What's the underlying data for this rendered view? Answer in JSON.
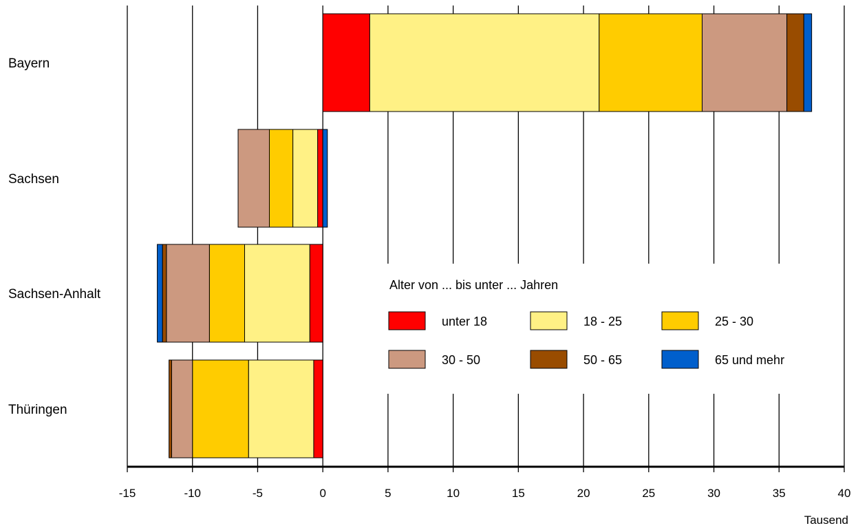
{
  "chart_data": {
    "type": "bar",
    "orientation": "horizontal",
    "stacked": true,
    "categories": [
      "Bayern",
      "Sachsen",
      "Sachsen-Anhalt",
      "Thüringen"
    ],
    "series": [
      {
        "name": "unter 18",
        "color": "#ff0000",
        "values": [
          3.6,
          -0.4,
          -1.0,
          -0.7
        ]
      },
      {
        "name": "18 - 25",
        "color": "#fff185",
        "values": [
          17.6,
          -1.9,
          -5.0,
          -5.0
        ]
      },
      {
        "name": "25 - 30",
        "color": "#ffcc00",
        "values": [
          7.9,
          -1.8,
          -2.7,
          -4.3
        ]
      },
      {
        "name": "30 - 50",
        "color": "#cc9980",
        "values": [
          6.5,
          -2.4,
          -3.3,
          -1.6
        ]
      },
      {
        "name": "50 - 65",
        "color": "#994c00",
        "values": [
          1.3,
          0,
          -0.3,
          -0.2
        ]
      },
      {
        "name": "65 und mehr",
        "color": "#005fcc",
        "values": [
          0.6,
          0.35,
          -0.4,
          0
        ]
      }
    ],
    "xlim": [
      -15,
      40
    ],
    "xticks": [
      "-15",
      "-10",
      "-5",
      "0",
      "5",
      "10",
      "15",
      "20",
      "25",
      "30",
      "35",
      "40"
    ],
    "xlabel": "Tausend",
    "grid": "vertical",
    "legend": {
      "title": "Alter von ... bis unter ... Jahren",
      "placement": "center-right",
      "columns": 3
    }
  }
}
